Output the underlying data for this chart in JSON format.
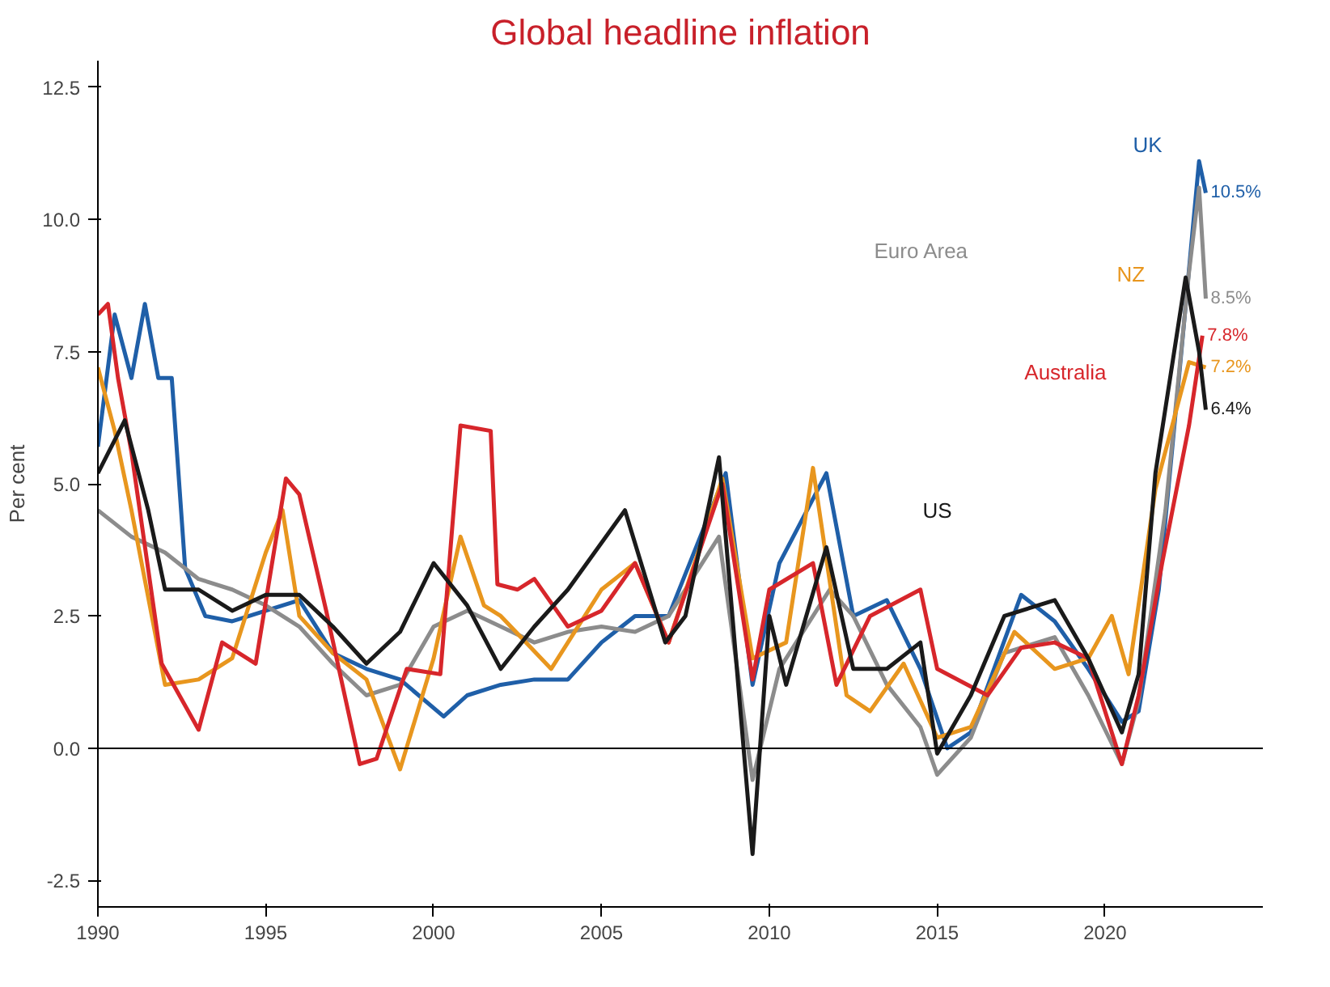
{
  "chart_data": {
    "type": "line",
    "title": "Global headline inflation",
    "ylabel": "Per cent",
    "xlim": [
      1990,
      2024.7
    ],
    "ylim": [
      -3,
      13
    ],
    "xticks": [
      1990,
      1995,
      2000,
      2005,
      2010,
      2015,
      2020
    ],
    "yticks": [
      {
        "value": -2.5,
        "label": "-2.5"
      },
      {
        "value": 0,
        "label": "0.0"
      },
      {
        "value": 2.5,
        "label": "2.5"
      },
      {
        "value": 5,
        "label": "5.0"
      },
      {
        "value": 7.5,
        "label": "7.5"
      },
      {
        "value": 10,
        "label": "10.0"
      },
      {
        "value": 12.5,
        "label": "12.5"
      }
    ],
    "grid": false,
    "legend": false,
    "line_style": "solid",
    "marker": "none",
    "ref_lines": [
      {
        "axis": "y",
        "value": 0,
        "label": null,
        "color": "#000000"
      }
    ],
    "series": [
      {
        "name": "UK",
        "color": "#1f5fa8",
        "x": [
          1990,
          1990.5,
          1991,
          1991.4,
          1991.8,
          1992.2,
          1992.6,
          1993.2,
          1994,
          1995,
          1996,
          1997,
          1998,
          1999,
          2000.3,
          2001,
          2002,
          2003,
          2004,
          2005,
          2006,
          2007,
          2008.7,
          2009.5,
          2010.3,
          2011.7,
          2012.5,
          2013.5,
          2014.5,
          2015.3,
          2016,
          2017.5,
          2018.5,
          2019.5,
          2020.5,
          2021,
          2021.6,
          2022.2,
          2022.8,
          2023.0
        ],
        "values": [
          5.7,
          8.2,
          7.0,
          8.4,
          7.0,
          7.0,
          3.4,
          2.5,
          2.4,
          2.6,
          2.8,
          1.8,
          1.5,
          1.3,
          0.6,
          1.0,
          1.2,
          1.3,
          1.3,
          2.0,
          2.5,
          2.5,
          5.2,
          1.2,
          3.5,
          5.2,
          2.5,
          2.8,
          1.5,
          0.0,
          0.3,
          2.9,
          2.4,
          1.5,
          0.5,
          0.7,
          3.0,
          7.0,
          11.1,
          10.5
        ],
        "value_labels": [
          null,
          null,
          null,
          null,
          null,
          null,
          null,
          null,
          null,
          null,
          null,
          null,
          null,
          null,
          null,
          null,
          null,
          null,
          null,
          null,
          null,
          null,
          null,
          null,
          null,
          null,
          null,
          null,
          null,
          null,
          null,
          null,
          null,
          null,
          null,
          null,
          null,
          null,
          null,
          "10.5%"
        ]
      },
      {
        "name": "Euro Area",
        "color": "#8c8c8c",
        "x": [
          1990,
          1991,
          1992,
          1993,
          1994,
          1995,
          1996,
          1997,
          1998,
          1999,
          2000,
          2001,
          2002,
          2003,
          2004,
          2005,
          2006,
          2007,
          2008.5,
          2009.5,
          2010.3,
          2011.8,
          2012.5,
          2013.5,
          2014.5,
          2015,
          2016,
          2017,
          2018.5,
          2019.5,
          2020.5,
          2021,
          2021.8,
          2022.5,
          2022.8,
          2023.0
        ],
        "values": [
          4.5,
          4.0,
          3.7,
          3.2,
          3.0,
          2.7,
          2.3,
          1.6,
          1.0,
          1.2,
          2.3,
          2.6,
          2.3,
          2.0,
          2.2,
          2.3,
          2.2,
          2.5,
          4.0,
          -0.6,
          1.5,
          3.0,
          2.5,
          1.2,
          0.4,
          -0.5,
          0.2,
          1.8,
          2.1,
          1.0,
          -0.3,
          0.9,
          4.5,
          9.0,
          10.6,
          8.5
        ],
        "value_labels": [
          null,
          null,
          null,
          null,
          null,
          null,
          null,
          null,
          null,
          null,
          null,
          null,
          null,
          null,
          null,
          null,
          null,
          null,
          null,
          null,
          null,
          null,
          null,
          null,
          null,
          null,
          null,
          null,
          null,
          null,
          null,
          null,
          null,
          null,
          null,
          "8.5%"
        ]
      },
      {
        "name": "NZ",
        "color": "#e8961e",
        "x": [
          1990,
          1990.5,
          1991,
          1992,
          1993,
          1994,
          1995,
          1995.5,
          1996,
          1997,
          1998,
          1999,
          2000,
          2000.8,
          2001.5,
          2002,
          2003.5,
          2004,
          2005,
          2006,
          2007,
          2008.6,
          2009.5,
          2010.5,
          2011.3,
          2012.3,
          2013,
          2014,
          2015,
          2016,
          2017.3,
          2018.5,
          2019.5,
          2020.2,
          2020.7,
          2021.5,
          2022.5,
          2023.0
        ],
        "values": [
          7.2,
          6.0,
          4.5,
          1.2,
          1.3,
          1.7,
          3.7,
          4.5,
          2.5,
          1.8,
          1.3,
          -0.4,
          1.7,
          4.0,
          2.7,
          2.5,
          1.5,
          2.0,
          3.0,
          3.5,
          2.0,
          5.1,
          1.7,
          2.0,
          5.3,
          1.0,
          0.7,
          1.6,
          0.2,
          0.4,
          2.2,
          1.5,
          1.7,
          2.5,
          1.4,
          4.9,
          7.3,
          7.2
        ],
        "value_labels": [
          null,
          null,
          null,
          null,
          null,
          null,
          null,
          null,
          null,
          null,
          null,
          null,
          null,
          null,
          null,
          null,
          null,
          null,
          null,
          null,
          null,
          null,
          null,
          null,
          null,
          null,
          null,
          null,
          null,
          null,
          null,
          null,
          null,
          null,
          null,
          null,
          null,
          "7.2%"
        ]
      },
      {
        "name": "Australia",
        "color": "#d7262b",
        "x": [
          1990,
          1990.3,
          1990.6,
          1991.0,
          1991.9,
          1993.0,
          1993.7,
          1994.7,
          1995.6,
          1996.0,
          1996.8,
          1997.8,
          1998.3,
          1999.2,
          2000.2,
          2000.8,
          2001.7,
          2001.9,
          2002.5,
          2003,
          2004,
          2005,
          2006,
          2007,
          2008.6,
          2009.5,
          2010,
          2011.3,
          2012,
          2013,
          2014.5,
          2015,
          2016.5,
          2017.5,
          2018.5,
          2019.5,
          2020.5,
          2021,
          2021.7,
          2022.5,
          2022.9
        ],
        "values": [
          8.2,
          8.4,
          7.0,
          5.6,
          1.6,
          0.35,
          2.0,
          1.6,
          5.1,
          4.8,
          2.6,
          -0.3,
          -0.2,
          1.5,
          1.4,
          6.1,
          6.0,
          3.1,
          3.0,
          3.2,
          2.3,
          2.6,
          3.5,
          2.0,
          5.0,
          1.3,
          3.0,
          3.5,
          1.2,
          2.5,
          3.0,
          1.5,
          1.0,
          1.9,
          2.0,
          1.7,
          -0.3,
          1.0,
          3.5,
          6.1,
          7.8
        ],
        "value_labels": [
          null,
          null,
          null,
          null,
          null,
          null,
          null,
          null,
          null,
          null,
          null,
          null,
          null,
          null,
          null,
          null,
          null,
          null,
          null,
          null,
          null,
          null,
          null,
          null,
          null,
          null,
          null,
          null,
          null,
          null,
          null,
          null,
          null,
          null,
          null,
          null,
          null,
          null,
          null,
          null,
          "7.8%"
        ]
      },
      {
        "name": "US",
        "color": "#1a1a1a",
        "x": [
          1990,
          1990.8,
          1991.5,
          1992,
          1993,
          1994,
          1995,
          1996,
          1997,
          1998,
          1999,
          2000,
          2001,
          2002,
          2003,
          2004,
          2005.7,
          2006.9,
          2007.5,
          2008.5,
          2009.5,
          2010,
          2010.5,
          2011.7,
          2012.5,
          2013.5,
          2014.5,
          2015,
          2016,
          2017,
          2018.5,
          2019.5,
          2020.5,
          2021,
          2021.5,
          2022.4,
          2022.8,
          2023.0
        ],
        "values": [
          5.2,
          6.2,
          4.5,
          3.0,
          3.0,
          2.6,
          2.9,
          2.9,
          2.3,
          1.6,
          2.2,
          3.5,
          2.7,
          1.5,
          2.3,
          3.0,
          4.5,
          2.0,
          2.5,
          5.5,
          -2.0,
          2.5,
          1.2,
          3.8,
          1.5,
          1.5,
          2.0,
          -0.1,
          1.0,
          2.5,
          2.8,
          1.7,
          0.3,
          1.4,
          5.2,
          8.9,
          7.5,
          6.4
        ],
        "value_labels": [
          null,
          null,
          null,
          null,
          null,
          null,
          null,
          null,
          null,
          null,
          null,
          null,
          null,
          null,
          null,
          null,
          null,
          null,
          null,
          null,
          null,
          null,
          null,
          null,
          null,
          null,
          null,
          null,
          null,
          null,
          null,
          null,
          null,
          null,
          null,
          null,
          null,
          "6.4%"
        ]
      }
    ]
  }
}
